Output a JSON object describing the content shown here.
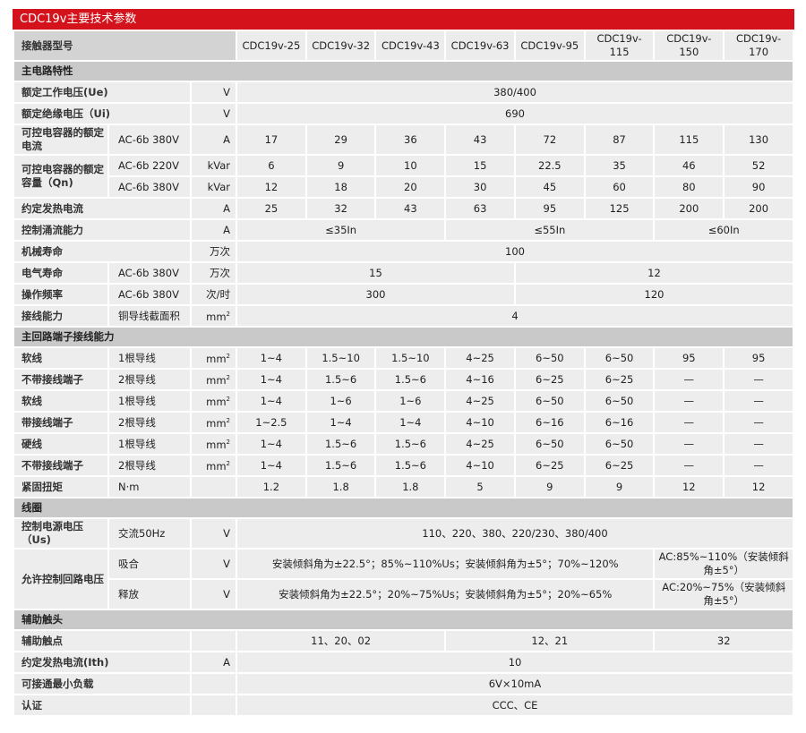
{
  "title": "CDC19v主要技术参数",
  "header": {
    "label": "接触器型号",
    "models": [
      "CDC19v-25",
      "CDC19v-32",
      "CDC19v-43",
      "CDC19v-63",
      "CDC19v-95",
      "CDC19v-115",
      "CDC19v-150",
      "CDC19v-170"
    ]
  },
  "colors": {
    "title_bg": "#d3121b",
    "section_bg": "#c9c9c9",
    "cell_bg": "#ededed"
  },
  "rows": [
    {
      "section": "主电路特性"
    },
    {
      "label": "额定工作电压(Ue)",
      "unit": "V",
      "cells": [
        {
          "v": "380/400",
          "span": 8
        }
      ]
    },
    {
      "label": "额定绝缘电压（Ui)",
      "unit": "V",
      "cells": [
        {
          "v": "690",
          "span": 8
        }
      ]
    },
    {
      "label": "可控电容器的额定电流",
      "cond": "AC-6b 380V",
      "unit": "A",
      "cells": [
        "17",
        "29",
        "36",
        "43",
        "72",
        "87",
        "115",
        "130"
      ]
    },
    {
      "label": "可控电容器的额定容量（Qn)",
      "rowspan": 2,
      "cond": "AC-6b 220V",
      "unit": "kVar",
      "cells": [
        "6",
        "9",
        "10",
        "15",
        "22.5",
        "35",
        "46",
        "52"
      ]
    },
    {
      "cond": "AC-6b 380V",
      "unit": "kVar",
      "cells": [
        "12",
        "18",
        "20",
        "30",
        "45",
        "60",
        "80",
        "90"
      ]
    },
    {
      "label": "约定发热电流",
      "unit": "A",
      "cells": [
        "25",
        "32",
        "43",
        "63",
        "95",
        "125",
        "200",
        "200"
      ]
    },
    {
      "label": "控制涌流能力",
      "unit": "A",
      "cells": [
        {
          "v": "≤35In",
          "span": 3
        },
        {
          "v": "≤55In",
          "span": 3
        },
        {
          "v": "≤60In",
          "span": 2
        }
      ]
    },
    {
      "label": "机械寿命",
      "unit": "万次",
      "cells": [
        {
          "v": "100",
          "span": 8
        }
      ]
    },
    {
      "label": "电气寿命",
      "cond": "AC-6b 380V",
      "unit": "万次",
      "cells": [
        {
          "v": "15",
          "span": 4
        },
        {
          "v": "12",
          "span": 4
        }
      ]
    },
    {
      "label": "操作频率",
      "cond": "AC-6b 380V",
      "unit": "次/时",
      "cells": [
        {
          "v": "300",
          "span": 4
        },
        {
          "v": "120",
          "span": 4
        }
      ]
    },
    {
      "label": "接线能力",
      "cond": "铜导线截面积",
      "unit": "mm²",
      "cells": [
        {
          "v": "4",
          "span": 8
        }
      ]
    },
    {
      "section": "主回路端子接线能力"
    },
    {
      "label": "软线",
      "cond": "1根导线",
      "unit": "mm²",
      "cells": [
        "1~4",
        "1.5~10",
        "1.5~10",
        "4~25",
        "6~50",
        "6~50",
        "95",
        "95"
      ]
    },
    {
      "label": "不带接线端子",
      "cond": "2根导线",
      "unit": "mm²",
      "cells": [
        "1~4",
        "1.5~6",
        "1.5~6",
        "4~16",
        "6~25",
        "6~25",
        "—",
        "—"
      ]
    },
    {
      "label": "软线",
      "cond": "1根导线",
      "unit": "mm²",
      "cells": [
        "1~4",
        "1~6",
        "1~6",
        "4~25",
        "6~50",
        "6~50",
        "—",
        "—"
      ]
    },
    {
      "label": "带接线端子",
      "cond": "2根导线",
      "unit": "mm²",
      "cells": [
        "1~2.5",
        "1~4",
        "1~4",
        "4~10",
        "6~16",
        "6~16",
        "—",
        "—"
      ]
    },
    {
      "label": "硬线",
      "cond": "1根导线",
      "unit": "mm²",
      "cells": [
        "1~4",
        "1.5~6",
        "1.5~6",
        "4~25",
        "6~50",
        "6~50",
        "—",
        "—"
      ]
    },
    {
      "label": "不带接线端子",
      "cond": "2根导线",
      "unit": "mm²",
      "cells": [
        "1~4",
        "1.5~6",
        "1.5~6",
        "4~10",
        "6~25",
        "6~25",
        "—",
        "—"
      ]
    },
    {
      "label": "紧固扭矩",
      "cond": "N·m",
      "unit": "",
      "cells": [
        "1.2",
        "1.8",
        "1.8",
        "5",
        "9",
        "9",
        "12",
        "12"
      ]
    },
    {
      "section": "线圈"
    },
    {
      "label": "控制电源电压（Us)",
      "cond": "交流50Hz",
      "unit": "V",
      "cells": [
        {
          "v": "110、220、380、220/230、380/400",
          "span": 8
        }
      ]
    },
    {
      "label": "允许控制回路电压",
      "rowspan": 2,
      "cond": "吸合",
      "unit": "V",
      "cells": [
        {
          "v": "安装倾斜角为±22.5°；85%~110%Us；安装倾斜角为±5°；70%~120%",
          "span": 6
        },
        {
          "v": "AC:85%~110%（安装倾斜角±5°）",
          "span": 2
        }
      ]
    },
    {
      "cond": "释放",
      "unit": "V",
      "cells": [
        {
          "v": "安装倾斜角为±22.5°；20%~75%Us；安装倾斜角为±5°；20%~65%",
          "span": 6
        },
        {
          "v": "AC:20%~75%（安装倾斜角±5°）",
          "span": 2
        }
      ]
    },
    {
      "section": "辅助触头"
    },
    {
      "label": "辅助触点",
      "unit": "",
      "cells": [
        {
          "v": "11、20、02",
          "span": 3
        },
        {
          "v": "12、21",
          "span": 3
        },
        {
          "v": "32",
          "span": 2
        }
      ]
    },
    {
      "label": "约定发热电流(Ith)",
      "unit": "A",
      "cells": [
        {
          "v": "10",
          "span": 8
        }
      ]
    },
    {
      "label": "可接通最小负载",
      "unit": "",
      "cells": [
        {
          "v": "6V×10mA",
          "span": 8
        }
      ]
    },
    {
      "label": "认证",
      "unit": "",
      "cells": [
        {
          "v": "CCC、CE",
          "span": 8
        }
      ]
    }
  ]
}
